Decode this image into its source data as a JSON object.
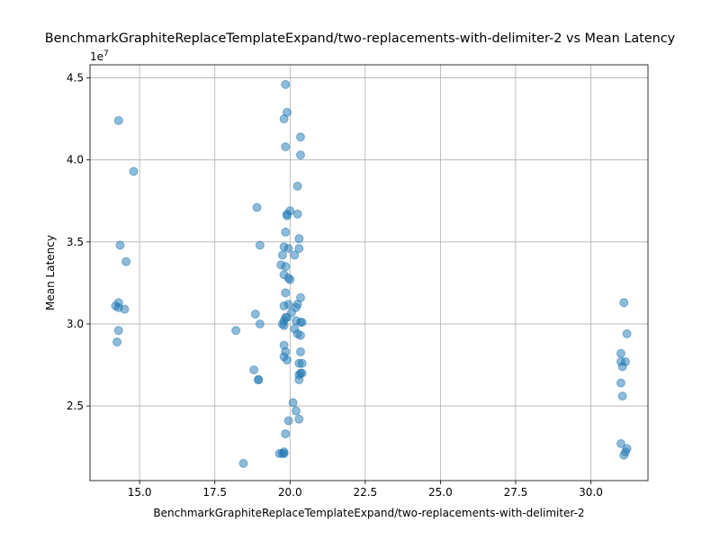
{
  "chart_data": {
    "type": "scatter",
    "title": "BenchmarkGraphiteReplaceTemplateExpand/two-replacements-with-delimiter-2 vs Mean Latency",
    "xlabel": "BenchmarkGraphiteReplaceTemplateExpand/two-replacements-with-delimiter-2",
    "ylabel": "Mean Latency",
    "y_offset_label": "1e7",
    "xlim": [
      13.35,
      31.9
    ],
    "ylim": [
      20450000,
      45800000
    ],
    "x_ticks": [
      15.0,
      17.5,
      20.0,
      22.5,
      25.0,
      27.5,
      30.0
    ],
    "x_tick_labels": [
      "15.0",
      "17.5",
      "20.0",
      "22.5",
      "25.0",
      "27.5",
      "30.0"
    ],
    "y_ticks": [
      25000000,
      30000000,
      35000000,
      40000000,
      45000000
    ],
    "y_tick_labels": [
      "2.5",
      "3.0",
      "3.5",
      "4.0",
      "4.5"
    ],
    "grid": true,
    "marker_color": "#1f77b4",
    "marker_alpha": 0.5,
    "points": [
      {
        "x": 14.3,
        "y": 42400000
      },
      {
        "x": 14.8,
        "y": 39300000
      },
      {
        "x": 14.35,
        "y": 34800000
      },
      {
        "x": 14.55,
        "y": 33800000
      },
      {
        "x": 14.2,
        "y": 31100000
      },
      {
        "x": 14.3,
        "y": 31300000
      },
      {
        "x": 14.3,
        "y": 31000000
      },
      {
        "x": 14.5,
        "y": 30900000
      },
      {
        "x": 14.3,
        "y": 29600000
      },
      {
        "x": 14.25,
        "y": 28900000
      },
      {
        "x": 18.2,
        "y": 29600000
      },
      {
        "x": 18.45,
        "y": 21500000
      },
      {
        "x": 18.8,
        "y": 27200000
      },
      {
        "x": 18.85,
        "y": 30600000
      },
      {
        "x": 18.9,
        "y": 37100000
      },
      {
        "x": 18.95,
        "y": 26600000
      },
      {
        "x": 18.95,
        "y": 26600000
      },
      {
        "x": 19.0,
        "y": 30000000
      },
      {
        "x": 19.0,
        "y": 34800000
      },
      {
        "x": 19.85,
        "y": 44600000
      },
      {
        "x": 19.9,
        "y": 42900000
      },
      {
        "x": 19.8,
        "y": 42500000
      },
      {
        "x": 20.35,
        "y": 41400000
      },
      {
        "x": 19.85,
        "y": 40800000
      },
      {
        "x": 20.35,
        "y": 40300000
      },
      {
        "x": 20.25,
        "y": 38400000
      },
      {
        "x": 19.9,
        "y": 36600000
      },
      {
        "x": 20.0,
        "y": 36900000
      },
      {
        "x": 19.9,
        "y": 36700000
      },
      {
        "x": 20.25,
        "y": 36700000
      },
      {
        "x": 19.85,
        "y": 35600000
      },
      {
        "x": 20.3,
        "y": 35200000
      },
      {
        "x": 19.8,
        "y": 34700000
      },
      {
        "x": 20.3,
        "y": 34600000
      },
      {
        "x": 19.95,
        "y": 34600000
      },
      {
        "x": 19.75,
        "y": 34200000
      },
      {
        "x": 20.15,
        "y": 34200000
      },
      {
        "x": 19.7,
        "y": 33600000
      },
      {
        "x": 19.85,
        "y": 33500000
      },
      {
        "x": 19.8,
        "y": 33000000
      },
      {
        "x": 19.95,
        "y": 32800000
      },
      {
        "x": 20.0,
        "y": 32700000
      },
      {
        "x": 19.85,
        "y": 31900000
      },
      {
        "x": 20.35,
        "y": 31600000
      },
      {
        "x": 20.25,
        "y": 31200000
      },
      {
        "x": 19.8,
        "y": 31100000
      },
      {
        "x": 19.95,
        "y": 31200000
      },
      {
        "x": 20.2,
        "y": 31000000
      },
      {
        "x": 20.05,
        "y": 30700000
      },
      {
        "x": 19.85,
        "y": 30400000
      },
      {
        "x": 19.9,
        "y": 30400000
      },
      {
        "x": 19.8,
        "y": 30200000
      },
      {
        "x": 20.2,
        "y": 30200000
      },
      {
        "x": 20.35,
        "y": 30100000
      },
      {
        "x": 20.4,
        "y": 30100000
      },
      {
        "x": 19.75,
        "y": 30000000
      },
      {
        "x": 19.8,
        "y": 29900000
      },
      {
        "x": 20.15,
        "y": 29700000
      },
      {
        "x": 20.25,
        "y": 29400000
      },
      {
        "x": 20.35,
        "y": 29300000
      },
      {
        "x": 19.8,
        "y": 28700000
      },
      {
        "x": 19.85,
        "y": 28300000
      },
      {
        "x": 20.35,
        "y": 28300000
      },
      {
        "x": 19.8,
        "y": 28000000
      },
      {
        "x": 19.9,
        "y": 27800000
      },
      {
        "x": 20.3,
        "y": 27600000
      },
      {
        "x": 20.4,
        "y": 27600000
      },
      {
        "x": 20.35,
        "y": 27000000
      },
      {
        "x": 20.3,
        "y": 26900000
      },
      {
        "x": 20.4,
        "y": 27000000
      },
      {
        "x": 20.3,
        "y": 26600000
      },
      {
        "x": 20.1,
        "y": 25200000
      },
      {
        "x": 20.2,
        "y": 24700000
      },
      {
        "x": 19.95,
        "y": 24100000
      },
      {
        "x": 20.3,
        "y": 24200000
      },
      {
        "x": 19.85,
        "y": 23300000
      },
      {
        "x": 19.8,
        "y": 22200000
      },
      {
        "x": 19.75,
        "y": 22100000
      },
      {
        "x": 19.65,
        "y": 22100000
      },
      {
        "x": 19.8,
        "y": 22100000
      },
      {
        "x": 31.1,
        "y": 31300000
      },
      {
        "x": 31.2,
        "y": 29400000
      },
      {
        "x": 31.0,
        "y": 28200000
      },
      {
        "x": 31.0,
        "y": 27700000
      },
      {
        "x": 31.15,
        "y": 27700000
      },
      {
        "x": 31.05,
        "y": 27400000
      },
      {
        "x": 31.0,
        "y": 26400000
      },
      {
        "x": 31.05,
        "y": 25600000
      },
      {
        "x": 31.0,
        "y": 22700000
      },
      {
        "x": 31.2,
        "y": 22400000
      },
      {
        "x": 31.15,
        "y": 22200000
      },
      {
        "x": 31.1,
        "y": 22000000
      }
    ]
  }
}
